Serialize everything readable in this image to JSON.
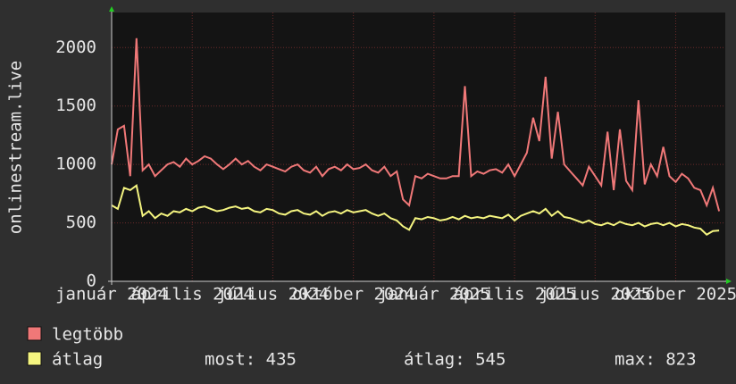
{
  "chart_data": {
    "type": "line",
    "y_label": "onlinestream.live",
    "xlim": [
      0,
      99
    ],
    "xticks": [
      {
        "value": 0,
        "label": "január 2024"
      },
      {
        "value": 13,
        "label": "április 2024"
      },
      {
        "value": 26,
        "label": "július 2024"
      },
      {
        "value": 39,
        "label": "október 2024"
      },
      {
        "value": 52,
        "label": "január 2025"
      },
      {
        "value": 65,
        "label": "április 2025"
      },
      {
        "value": 78,
        "label": "július 2025"
      },
      {
        "value": 91,
        "label": "október 2025"
      }
    ],
    "ylim": [
      0,
      2300
    ],
    "yticks": [
      0,
      500,
      1000,
      1500,
      2000
    ],
    "grid": true,
    "x": [
      0,
      1,
      2,
      3,
      4,
      5,
      6,
      7,
      8,
      9,
      10,
      11,
      12,
      13,
      14,
      15,
      16,
      17,
      18,
      19,
      20,
      21,
      22,
      23,
      24,
      25,
      26,
      27,
      28,
      29,
      30,
      31,
      32,
      33,
      34,
      35,
      36,
      37,
      38,
      39,
      40,
      41,
      42,
      43,
      44,
      45,
      46,
      47,
      48,
      49,
      50,
      51,
      52,
      53,
      54,
      55,
      56,
      57,
      58,
      59,
      60,
      61,
      62,
      63,
      64,
      65,
      66,
      67,
      68,
      69,
      70,
      71,
      72,
      73,
      74,
      75,
      76,
      77,
      78,
      79,
      80,
      81,
      82,
      83,
      84,
      85,
      86,
      87,
      88,
      89,
      90,
      91,
      92,
      93,
      94,
      95,
      96,
      97,
      98
    ],
    "series": [
      {
        "name": "legtöbb",
        "color": "#f07878",
        "values": [
          1000,
          1300,
          1330,
          900,
          2080,
          950,
          1000,
          900,
          950,
          1000,
          1020,
          980,
          1050,
          1000,
          1030,
          1070,
          1050,
          1000,
          960,
          1000,
          1050,
          1000,
          1030,
          980,
          950,
          1000,
          980,
          960,
          940,
          980,
          1000,
          950,
          930,
          980,
          900,
          960,
          980,
          950,
          1000,
          960,
          970,
          1000,
          950,
          930,
          980,
          900,
          940,
          700,
          650,
          900,
          880,
          920,
          900,
          880,
          880,
          900,
          900,
          1670,
          900,
          940,
          920,
          950,
          960,
          930,
          1000,
          900,
          1000,
          1100,
          1400,
          1200,
          1750,
          1050,
          1450,
          1000,
          940,
          880,
          820,
          980,
          900,
          820,
          1280,
          780,
          1300,
          860,
          780,
          1550,
          830,
          1000,
          900,
          1150,
          900,
          850,
          920,
          880,
          800,
          780,
          650,
          800,
          600
        ]
      },
      {
        "name": "átlag",
        "color": "#f5f580",
        "values": [
          650,
          620,
          800,
          780,
          820,
          560,
          600,
          540,
          580,
          560,
          600,
          590,
          620,
          600,
          630,
          640,
          620,
          600,
          610,
          630,
          640,
          620,
          630,
          600,
          590,
          620,
          610,
          580,
          570,
          600,
          610,
          580,
          570,
          600,
          560,
          590,
          600,
          580,
          610,
          590,
          600,
          610,
          580,
          560,
          580,
          540,
          520,
          470,
          440,
          540,
          530,
          550,
          540,
          520,
          530,
          550,
          530,
          560,
          540,
          550,
          540,
          560,
          550,
          540,
          570,
          520,
          560,
          580,
          600,
          580,
          620,
          560,
          600,
          550,
          540,
          520,
          500,
          520,
          490,
          480,
          500,
          480,
          510,
          490,
          480,
          500,
          470,
          490,
          500,
          480,
          500,
          470,
          490,
          480,
          460,
          450,
          400,
          430,
          435
        ]
      }
    ],
    "stats": [
      "most: 435",
      "átlag: 545",
      "max: 823"
    ]
  }
}
